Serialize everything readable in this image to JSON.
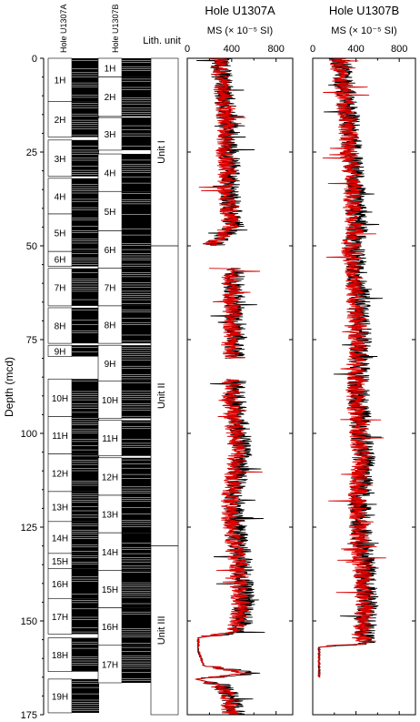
{
  "depth_axis": {
    "label": "Depth (mcd)",
    "range": [
      0,
      175
    ],
    "ticks": [
      "0",
      "25",
      "50",
      "75",
      "100",
      "125",
      "150",
      "175"
    ]
  },
  "columns": {
    "hole_a_label": "Hole U1307A",
    "hole_b_label": "Hole U1307B",
    "lith_label": "Lith. unit"
  },
  "cores_a": [
    {
      "name": "1H",
      "top": 0.0,
      "bottom": 11.5
    },
    {
      "name": "2H",
      "top": 11.5,
      "bottom": 21.0
    },
    {
      "name": "3H",
      "top": 21.8,
      "bottom": 31.5
    },
    {
      "name": "4H",
      "top": 32.0,
      "bottom": 41.5
    },
    {
      "name": "5H",
      "top": 41.5,
      "bottom": 51.5
    },
    {
      "name": "6H",
      "top": 51.5,
      "bottom": 55.5
    },
    {
      "name": "7H",
      "top": 56.0,
      "bottom": 66.0
    },
    {
      "name": "8H",
      "top": 66.5,
      "bottom": 76.0
    },
    {
      "name": "9H",
      "top": 76.5,
      "bottom": 79.5
    },
    {
      "name": "10H",
      "top": 85.5,
      "bottom": 95.5
    },
    {
      "name": "11H",
      "top": 95.5,
      "bottom": 105.5
    },
    {
      "name": "12H",
      "top": 105.5,
      "bottom": 115.5
    },
    {
      "name": "13H",
      "top": 115.5,
      "bottom": 123.5
    },
    {
      "name": "14H",
      "top": 123.5,
      "bottom": 132.0
    },
    {
      "name": "15H",
      "top": 132.0,
      "bottom": 136.0
    },
    {
      "name": "16H",
      "top": 136.0,
      "bottom": 144.0
    },
    {
      "name": "17H",
      "top": 144.0,
      "bottom": 153.5
    },
    {
      "name": "18H",
      "top": 154.5,
      "bottom": 163.5
    },
    {
      "name": "19H",
      "top": 165.5,
      "bottom": 174.5
    }
  ],
  "cores_b": [
    {
      "name": "1H",
      "top": 0.0,
      "bottom": 5.0
    },
    {
      "name": "2H",
      "top": 5.0,
      "bottom": 15.5
    },
    {
      "name": "3H",
      "top": 15.8,
      "bottom": 24.5
    },
    {
      "name": "4H",
      "top": 25.5,
      "bottom": 35.5
    },
    {
      "name": "5H",
      "top": 35.5,
      "bottom": 46.0
    },
    {
      "name": "6H",
      "top": 46.0,
      "bottom": 56.0
    },
    {
      "name": "7H",
      "top": 56.0,
      "bottom": 66.0
    },
    {
      "name": "8H",
      "top": 66.0,
      "bottom": 76.0
    },
    {
      "name": "9H",
      "top": 76.5,
      "bottom": 86.0
    },
    {
      "name": "10H",
      "top": 86.0,
      "bottom": 96.0
    },
    {
      "name": "11H",
      "top": 96.5,
      "bottom": 106.0
    },
    {
      "name": "12H",
      "top": 106.5,
      "bottom": 116.5
    },
    {
      "name": "13H",
      "top": 116.5,
      "bottom": 126.5
    },
    {
      "name": "14H",
      "top": 126.5,
      "bottom": 136.5
    },
    {
      "name": "15H",
      "top": 136.5,
      "bottom": 146.5
    },
    {
      "name": "16H",
      "top": 146.5,
      "bottom": 156.5
    },
    {
      "name": "17H",
      "top": 156.5,
      "bottom": 166.5
    }
  ],
  "lith_units": [
    {
      "name": "Unit I",
      "top": 0,
      "bottom": 50
    },
    {
      "name": "Unit II",
      "top": 50,
      "bottom": 130
    },
    {
      "name": "Unit III",
      "top": 130,
      "bottom": 175
    }
  ],
  "chart_data": [
    {
      "type": "line",
      "title": "Hole U1307A",
      "xlabel": "MS (× 10⁻⁵ SI)",
      "ylabel": "Depth (mcd)",
      "xlim": [
        0,
        950
      ],
      "ylim": [
        0,
        175
      ],
      "xticks": [
        "0",
        "400",
        "800"
      ],
      "series": [
        {
          "color": "#000000",
          "profile": [
            [
              0,
              300
            ],
            [
              4,
              310
            ],
            [
              8,
              330
            ],
            [
              12,
              340
            ],
            [
              16,
              360
            ],
            [
              20,
              380
            ],
            [
              25,
              370
            ],
            [
              30,
              390
            ],
            [
              35,
              380
            ],
            [
              40,
              400
            ],
            [
              45,
              420
            ],
            [
              48,
              300
            ],
            [
              49.5,
              260
            ],
            [
              56,
              440
            ],
            [
              60,
              420
            ],
            [
              65,
              430
            ],
            [
              70,
              440
            ],
            [
              75,
              430
            ],
            [
              78,
              420
            ],
            [
              86,
              440
            ],
            [
              90,
              430
            ],
            [
              95,
              450
            ],
            [
              100,
              480
            ],
            [
              105,
              500
            ],
            [
              110,
              460
            ],
            [
              115,
              440
            ],
            [
              120,
              420
            ],
            [
              125,
              440
            ],
            [
              130,
              470
            ],
            [
              135,
              500
            ],
            [
              140,
              510
            ],
            [
              145,
              520
            ],
            [
              150,
              500
            ],
            [
              153,
              470
            ],
            [
              154.5,
              100
            ],
            [
              158,
              100
            ],
            [
              162,
              150
            ],
            [
              163,
              400
            ],
            [
              164,
              600
            ],
            [
              165.5,
              80
            ],
            [
              167,
              300
            ],
            [
              170,
              400
            ],
            [
              173,
              420
            ],
            [
              175,
              430
            ]
          ],
          "noise": 95
        },
        {
          "color": "#dd0000",
          "profile": [
            [
              0,
              280
            ],
            [
              4,
              300
            ],
            [
              8,
              320
            ],
            [
              12,
              330
            ],
            [
              16,
              340
            ],
            [
              20,
              350
            ],
            [
              25,
              340
            ],
            [
              30,
              360
            ],
            [
              35,
              350
            ],
            [
              40,
              370
            ],
            [
              45,
              380
            ],
            [
              48,
              280
            ],
            [
              49.5,
              220
            ],
            [
              56,
              400
            ],
            [
              60,
              390
            ],
            [
              65,
              400
            ],
            [
              70,
              410
            ],
            [
              75,
              400
            ],
            [
              78,
              380
            ],
            [
              86,
              400
            ],
            [
              90,
              390
            ],
            [
              95,
              410
            ],
            [
              100,
              430
            ],
            [
              105,
              460
            ],
            [
              110,
              420
            ],
            [
              115,
              400
            ],
            [
              120,
              380
            ],
            [
              125,
              400
            ],
            [
              130,
              430
            ],
            [
              135,
              460
            ],
            [
              140,
              470
            ],
            [
              145,
              480
            ],
            [
              150,
              460
            ],
            [
              153,
              440
            ],
            [
              154.5,
              100
            ],
            [
              158,
              100
            ],
            [
              162,
              150
            ],
            [
              163,
              380
            ],
            [
              164,
              560
            ],
            [
              165.5,
              80
            ],
            [
              167,
              280
            ],
            [
              170,
              370
            ],
            [
              173,
              390
            ],
            [
              175,
              400
            ]
          ],
          "noise": 85
        }
      ],
      "gaps": [
        [
          50,
          56
        ],
        [
          80,
          85.5
        ]
      ]
    },
    {
      "type": "line",
      "title": "Hole U1307B",
      "xlabel": "MS (× 10⁻⁵ SI)",
      "ylabel": "Depth (mcd)",
      "xlim": [
        0,
        950
      ],
      "ylim": [
        0,
        175
      ],
      "xticks": [
        "0",
        "400",
        "800"
      ],
      "series": [
        {
          "color": "#000000",
          "profile": [
            [
              0,
              250
            ],
            [
              4,
              280
            ],
            [
              8,
              300
            ],
            [
              12,
              320
            ],
            [
              16,
              340
            ],
            [
              20,
              350
            ],
            [
              25,
              360
            ],
            [
              30,
              380
            ],
            [
              35,
              390
            ],
            [
              40,
              400
            ],
            [
              45,
              420
            ],
            [
              50,
              380
            ],
            [
              55,
              400
            ],
            [
              60,
              420
            ],
            [
              65,
              430
            ],
            [
              70,
              440
            ],
            [
              75,
              450
            ],
            [
              80,
              440
            ],
            [
              85,
              420
            ],
            [
              90,
              430
            ],
            [
              95,
              440
            ],
            [
              100,
              450
            ],
            [
              105,
              480
            ],
            [
              110,
              470
            ],
            [
              115,
              450
            ],
            [
              120,
              440
            ],
            [
              125,
              450
            ],
            [
              130,
              470
            ],
            [
              135,
              480
            ],
            [
              140,
              500
            ],
            [
              145,
              510
            ],
            [
              150,
              500
            ],
            [
              155,
              480
            ],
            [
              156,
              480
            ],
            [
              157,
              60
            ],
            [
              163,
              60
            ],
            [
              165,
              60
            ]
          ],
          "noise": 100
        },
        {
          "color": "#dd0000",
          "profile": [
            [
              0,
              230
            ],
            [
              4,
              260
            ],
            [
              8,
              280
            ],
            [
              12,
              300
            ],
            [
              16,
              320
            ],
            [
              20,
              330
            ],
            [
              25,
              340
            ],
            [
              30,
              360
            ],
            [
              35,
              360
            ],
            [
              40,
              370
            ],
            [
              45,
              390
            ],
            [
              50,
              350
            ],
            [
              55,
              370
            ],
            [
              60,
              390
            ],
            [
              65,
              400
            ],
            [
              70,
              410
            ],
            [
              75,
              420
            ],
            [
              80,
              410
            ],
            [
              85,
              390
            ],
            [
              90,
              400
            ],
            [
              95,
              410
            ],
            [
              100,
              420
            ],
            [
              105,
              450
            ],
            [
              110,
              440
            ],
            [
              115,
              420
            ],
            [
              120,
              410
            ],
            [
              125,
              420
            ],
            [
              130,
              440
            ],
            [
              135,
              450
            ],
            [
              140,
              470
            ],
            [
              145,
              480
            ],
            [
              150,
              470
            ],
            [
              155,
              450
            ],
            [
              156,
              450
            ],
            [
              157,
              60
            ],
            [
              163,
              60
            ],
            [
              165,
              60
            ]
          ],
          "noise": 90
        }
      ],
      "gaps": []
    }
  ]
}
